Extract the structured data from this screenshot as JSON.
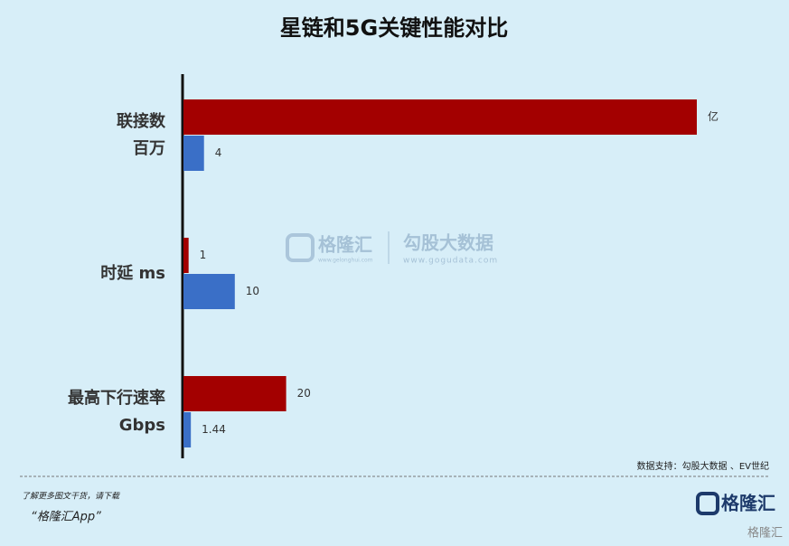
{
  "chart_data": {
    "type": "bar",
    "orientation": "horizontal",
    "title": "星链和5G关键性能对比",
    "categories": [
      "联接数\n百万",
      "时延 ms",
      "最高下行速率\nGbps"
    ],
    "series": [
      {
        "color": "#a30000",
        "values": [
          100,
          1,
          20
        ],
        "value_labels": [
          "亿",
          "1",
          "20"
        ]
      },
      {
        "color": "#3a6fc7",
        "values": [
          4,
          10,
          1.44
        ]
      }
    ]
  },
  "watermark": {
    "brand": "格隆汇",
    "brand_url": "www.gelonghui.com",
    "partner": "勾股大数据",
    "partner_url": "www.gogudata.com"
  },
  "source": "数据支持：勾股大数据 、EV世纪",
  "footer": {
    "prompt": "了解更多图文干货，请下载",
    "app": "“格隆汇App”",
    "logo": "格隆汇",
    "corner": "格隆汇"
  }
}
